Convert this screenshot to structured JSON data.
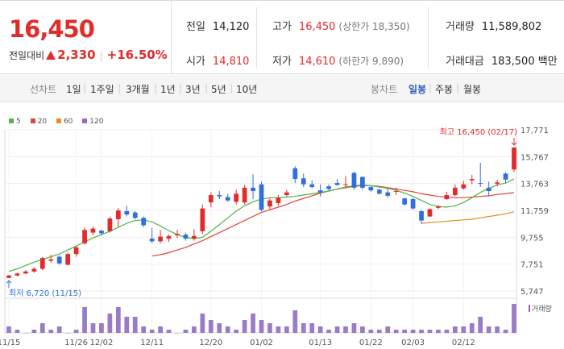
{
  "stock": {
    "price": "16,450",
    "change_label": "전일대비",
    "change_value": "2,330",
    "change_percent": "+16.50%"
  },
  "info": {
    "prev_close_label": "전일",
    "prev_close": "14,120",
    "high_label": "고가",
    "high": "16,450",
    "upper_limit": "(상한가 18,350)",
    "volume_label": "거래량",
    "volume": "11,589,802",
    "open_label": "시가",
    "open": "14,810",
    "low_label": "저가",
    "low": "14,610",
    "lower_limit": "(하한가 9,890)",
    "value_label": "거래대금",
    "value": "183,500 백만"
  },
  "tabs": {
    "line_label": "선차트",
    "line_periods": [
      "1일",
      "1주일",
      "3개월",
      "1년",
      "3년",
      "5년",
      "10년"
    ],
    "candle_label": "봉차트",
    "candle_periods": [
      "일봉",
      "주봉",
      "월봉"
    ],
    "candle_selected": 0
  },
  "colors": {
    "up": "#e22b2b",
    "down": "#2f6fde",
    "ma5": "#52b545",
    "ma20": "#e2433d",
    "ma60": "#ee8b1f",
    "ma120": "#9b65c5",
    "volume": "#9a7bc7"
  },
  "chart_data": {
    "type": "candlestick",
    "legend": [
      "5",
      "20",
      "60",
      "120"
    ],
    "y_ticks": [
      "17,771",
      "15,767",
      "13,763",
      "11,759",
      "9,755",
      "7,751",
      "5,747"
    ],
    "y_range": [
      5747,
      17771
    ],
    "x_labels": [
      "11/15",
      "11/26",
      "12/02",
      "12/11",
      "12/20",
      "01/02",
      "01/13",
      "01/22",
      "02/03",
      "02/12"
    ],
    "x_label_index": [
      0,
      8,
      11,
      17,
      24,
      30,
      37,
      43,
      48,
      54
    ],
    "max_label": "최고 16,450 (02/17)",
    "min_label": "최저 6,720 (11/15)",
    "volume_label": "거래량",
    "candles": [
      [
        6720,
        6950,
        6700,
        6900
      ],
      [
        6900,
        7100,
        6850,
        7050
      ],
      [
        7050,
        7300,
        7000,
        7200
      ],
      [
        7200,
        7500,
        7100,
        7400
      ],
      [
        7400,
        8300,
        7300,
        8200
      ],
      [
        8000,
        8450,
        7850,
        8100
      ],
      [
        8300,
        8400,
        7700,
        7800
      ],
      [
        7700,
        8600,
        7650,
        8500
      ],
      [
        8500,
        9100,
        8300,
        9000
      ],
      [
        9300,
        10500,
        9200,
        10300
      ],
      [
        10100,
        10550,
        9900,
        10400
      ],
      [
        10250,
        10300,
        9900,
        10050
      ],
      [
        10200,
        11300,
        10100,
        11150
      ],
      [
        11100,
        11950,
        10550,
        11750
      ],
      [
        11700,
        12100,
        11300,
        11450
      ],
      [
        11600,
        11700,
        11100,
        11200
      ],
      [
        11200,
        11300,
        10500,
        10650
      ],
      [
        9650,
        10450,
        9300,
        9450
      ],
      [
        9450,
        10300,
        9300,
        9800
      ],
      [
        9650,
        9950,
        9400,
        9850
      ],
      [
        9900,
        10300,
        9700,
        10000
      ],
      [
        9950,
        10100,
        9500,
        9650
      ],
      [
        9650,
        10350,
        9500,
        9850
      ],
      [
        10200,
        12200,
        10000,
        11900
      ],
      [
        12350,
        13100,
        12000,
        12900
      ],
      [
        12900,
        13200,
        12600,
        12800
      ],
      [
        12750,
        13000,
        12400,
        12500
      ],
      [
        12400,
        13300,
        12200,
        13000
      ],
      [
        12350,
        13650,
        12200,
        13450
      ],
      [
        13450,
        14450,
        12600,
        13200
      ],
      [
        13700,
        13900,
        11700,
        11800
      ],
      [
        12050,
        12700,
        11800,
        12500
      ],
      [
        12300,
        12900,
        12100,
        12700
      ],
      [
        12900,
        13300,
        12800,
        13100
      ],
      [
        14900,
        15050,
        13800,
        14100
      ],
      [
        14150,
        14500,
        13500,
        13700
      ],
      [
        13700,
        14000,
        13400,
        13500
      ],
      [
        13250,
        13700,
        12800,
        13100
      ],
      [
        13550,
        13700,
        13200,
        13350
      ],
      [
        13800,
        14100,
        13600,
        13650
      ],
      [
        13700,
        14300,
        13500,
        13700
      ],
      [
        14550,
        14650,
        13300,
        13450
      ],
      [
        14250,
        14300,
        13300,
        13450
      ],
      [
        13500,
        13550,
        13150,
        13250
      ],
      [
        13300,
        13400,
        12950,
        13000
      ],
      [
        13100,
        13400,
        12700,
        12850
      ],
      [
        13150,
        13450,
        12900,
        13200
      ],
      [
        12650,
        12700,
        12100,
        12200
      ],
      [
        12600,
        12700,
        11800,
        11900
      ],
      [
        11700,
        11800,
        10750,
        11000
      ],
      [
        11300,
        11900,
        11300,
        11850
      ],
      [
        11950,
        12150,
        11850,
        12050
      ],
      [
        12600,
        13150,
        12550,
        12900
      ],
      [
        12900,
        13700,
        12800,
        13450
      ],
      [
        13400,
        13950,
        13300,
        13700
      ],
      [
        14000,
        14400,
        13700,
        14100
      ],
      [
        13800,
        15300,
        13500,
        13750
      ],
      [
        13450,
        13900,
        12800,
        13200
      ],
      [
        13750,
        14050,
        13550,
        13850
      ],
      [
        14500,
        14600,
        13800,
        14050
      ],
      [
        14810,
        16450,
        14610,
        16450
      ]
    ],
    "volumes": [
      2,
      1,
      0,
      1,
      3,
      1,
      2,
      0,
      1,
      8,
      3,
      3,
      6,
      8,
      5,
      5,
      2,
      1,
      2,
      1,
      0,
      1,
      2,
      6,
      4,
      3,
      2,
      1,
      4,
      6,
      4,
      3,
      2,
      2,
      7,
      3,
      3,
      2,
      1,
      2,
      2,
      3,
      2,
      1,
      1,
      2,
      1,
      1,
      1,
      1,
      1,
      1,
      1,
      2,
      2,
      3,
      5,
      2,
      2,
      1,
      9
    ],
    "ma5": [
      7200,
      7400,
      7650,
      7900,
      8100,
      8300,
      8500,
      8800,
      9100,
      9400,
      9700,
      9950,
      10200,
      10500,
      10800,
      11000,
      11050,
      10900,
      10600,
      10250,
      9950,
      9750,
      9650,
      9750,
      10200,
      10700,
      11200,
      11700,
      12100,
      12400,
      12600,
      12700,
      12700,
      12750,
      12800,
      12900,
      13000,
      13100,
      13200,
      13350,
      13500,
      13600,
      13650,
      13600,
      13500,
      13400,
      13250,
      13050,
      12800,
      12500,
      12200,
      12050,
      12000,
      12100,
      12350,
      12700,
      13100,
      13400,
      13650,
      13800,
      14100
    ],
    "ma20": [
      null,
      null,
      null,
      null,
      null,
      null,
      null,
      null,
      null,
      null,
      null,
      null,
      null,
      null,
      null,
      null,
      null,
      8350,
      8450,
      8600,
      8800,
      9000,
      9250,
      9500,
      9800,
      10100,
      10400,
      10700,
      11000,
      11300,
      11600,
      11800,
      12000,
      12200,
      12450,
      12650,
      12850,
      13050,
      13200,
      13350,
      13450,
      13550,
      13600,
      13600,
      13550,
      13450,
      13350,
      13250,
      13150,
      13000,
      12900,
      12800,
      12750,
      12700,
      12700,
      12750,
      12800,
      12850,
      12950,
      13000,
      13100
    ],
    "ma60": [
      null,
      null,
      null,
      null,
      null,
      null,
      null,
      null,
      null,
      null,
      null,
      null,
      null,
      null,
      null,
      null,
      null,
      null,
      null,
      null,
      null,
      null,
      null,
      null,
      null,
      null,
      null,
      null,
      null,
      null,
      null,
      null,
      null,
      null,
      null,
      null,
      null,
      null,
      null,
      null,
      null,
      null,
      null,
      null,
      null,
      null,
      null,
      null,
      null,
      10800,
      10850,
      10900,
      10950,
      11000,
      11050,
      11100,
      11200,
      11300,
      11400,
      11500,
      11650
    ]
  }
}
